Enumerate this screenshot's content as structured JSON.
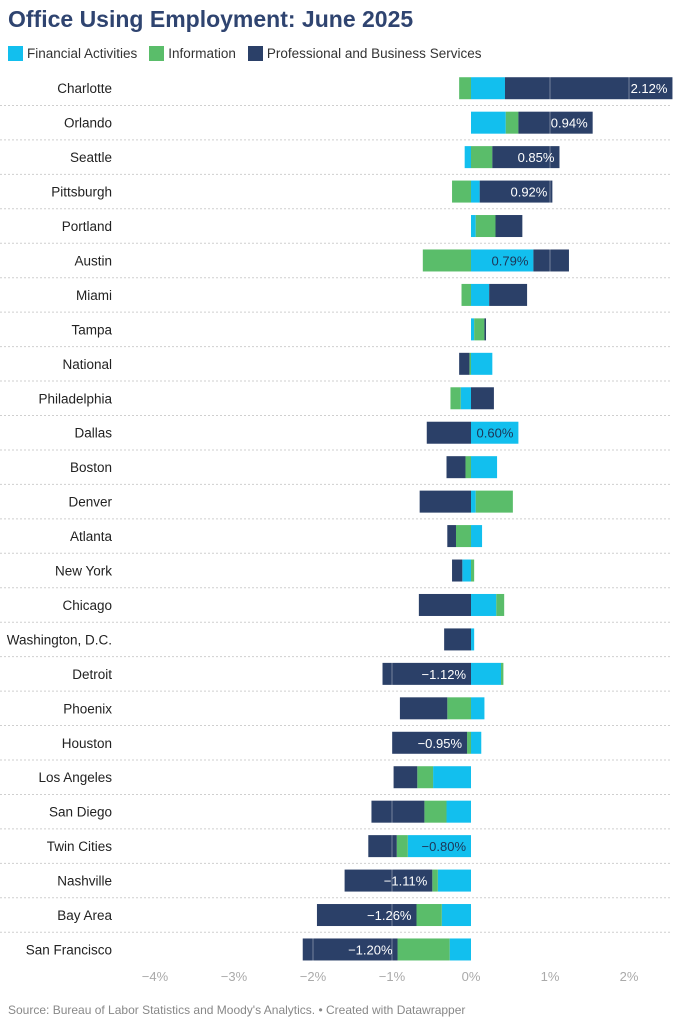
{
  "title": "Office Using Employment: June 2025",
  "source": "Source: Bureau of Labor Statistics and Moody's Analytics. • Created with Datawrapper",
  "chart_data": {
    "type": "bar",
    "orientation": "horizontal",
    "stacked": "diverging",
    "title": "Office Using Employment: June 2025",
    "xlim": [
      -4.4,
      2.5
    ],
    "x_ticks": [
      -4,
      -3,
      -2,
      -1,
      0,
      1,
      2
    ],
    "x_tick_labels": [
      "−4%",
      "−3%",
      "−2%",
      "−1%",
      "0%",
      "1%",
      "2%"
    ],
    "grid": true,
    "legend_position": "top-left",
    "categories": [
      "Charlotte",
      "Orlando",
      "Seattle",
      "Pittsburgh",
      "Portland",
      "Austin",
      "Miami",
      "Tampa",
      "National",
      "Philadelphia",
      "Dallas",
      "Boston",
      "Denver",
      "Atlanta",
      "New York",
      "Chicago",
      "Washington, D.C.",
      "Detroit",
      "Phoenix",
      "Houston",
      "Los Angeles",
      "San Diego",
      "Twin Cities",
      "Nashville",
      "Bay Area",
      "San Francisco"
    ],
    "series": [
      {
        "name": "Financial Activities",
        "color": "#12bfee",
        "values": [
          0.43,
          0.44,
          -0.08,
          0.11,
          0.06,
          0.79,
          0.23,
          0.04,
          0.27,
          -0.13,
          0.6,
          0.33,
          0.06,
          0.14,
          -0.11,
          0.32,
          0.04,
          0.38,
          0.17,
          0.13,
          -0.48,
          -0.31,
          -0.8,
          -0.42,
          -0.37,
          -0.27
        ]
      },
      {
        "name": "Information",
        "color": "#5abd6a",
        "values": [
          -0.15,
          0.16,
          0.27,
          -0.24,
          0.25,
          -0.61,
          -0.12,
          0.13,
          -0.02,
          -0.13,
          0,
          -0.07,
          0.47,
          -0.19,
          0.04,
          0.1,
          0,
          0.03,
          -0.3,
          -0.05,
          -0.2,
          -0.28,
          -0.14,
          -0.07,
          -0.32,
          -0.66
        ]
      },
      {
        "name": "Professional and Business Services",
        "color": "#2b4068",
        "values": [
          2.12,
          0.94,
          0.85,
          0.92,
          0.34,
          0.45,
          0.48,
          0.02,
          -0.13,
          0.29,
          -0.56,
          -0.24,
          -0.65,
          -0.11,
          -0.13,
          -0.66,
          -0.34,
          -1.12,
          -0.6,
          -0.95,
          -0.3,
          -0.67,
          -0.36,
          -1.11,
          -1.26,
          -1.2
        ]
      }
    ],
    "data_labels": [
      {
        "category": "Charlotte",
        "series": "Professional and Business Services",
        "text": "2.12%"
      },
      {
        "category": "Orlando",
        "series": "Professional and Business Services",
        "text": "0.94%"
      },
      {
        "category": "Seattle",
        "series": "Professional and Business Services",
        "text": "0.85%"
      },
      {
        "category": "Pittsburgh",
        "series": "Professional and Business Services",
        "text": "0.92%"
      },
      {
        "category": "Austin",
        "series": "Financial Activities",
        "text": "0.79%"
      },
      {
        "category": "Dallas",
        "series": "Financial Activities",
        "text": "0.60%"
      },
      {
        "category": "Detroit",
        "series": "Professional and Business Services",
        "text": "−1.12%"
      },
      {
        "category": "Houston",
        "series": "Professional and Business Services",
        "text": "−0.95%"
      },
      {
        "category": "Twin Cities",
        "series": "Financial Activities",
        "text": "−0.80%"
      },
      {
        "category": "Nashville",
        "series": "Professional and Business Services",
        "text": "−1.11%"
      },
      {
        "category": "Bay Area",
        "series": "Professional and Business Services",
        "text": "−1.26%"
      },
      {
        "category": "San Francisco",
        "series": "Professional and Business Services",
        "text": "−1.20%"
      }
    ]
  }
}
